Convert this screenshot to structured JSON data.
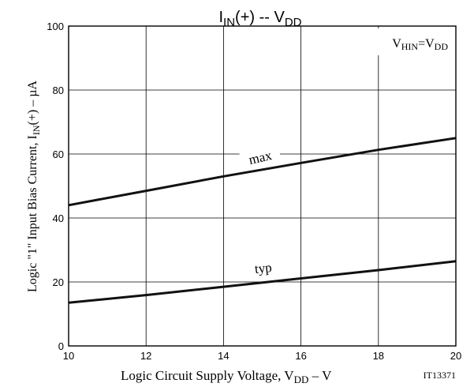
{
  "chart_data": {
    "type": "line",
    "title": {
      "base": "I",
      "sub": "IN",
      "rest": "(+)  --  V",
      "sub2": "DD"
    },
    "xlabel": {
      "base": "Logic Circuit Supply Voltage, V",
      "sub": "DD",
      "rest": " –  V"
    },
    "ylabel": {
      "base": "Logic \"1\" Input Bias Current, I",
      "sub": "IN",
      "rest": "(+)  –  µA"
    },
    "condition": {
      "v1": "V",
      "s1": "HIN",
      "eq": "=V",
      "s2": "DD"
    },
    "code": "IT13371",
    "xlim": [
      10,
      20
    ],
    "ylim": [
      0,
      100
    ],
    "xticks": [
      10,
      12,
      14,
      16,
      18,
      20
    ],
    "yticks": [
      0,
      20,
      40,
      60,
      80,
      100
    ],
    "grid": true,
    "line_color": "#111111",
    "series": [
      {
        "name": "max",
        "x": [
          10,
          12,
          14,
          16,
          18,
          20
        ],
        "values": [
          44,
          48.5,
          53,
          57.2,
          61.3,
          65
        ]
      },
      {
        "name": "typ",
        "x": [
          10,
          12,
          14,
          16,
          18,
          20
        ],
        "values": [
          13.5,
          15.9,
          18.5,
          21.1,
          23.7,
          26.5
        ]
      }
    ]
  }
}
